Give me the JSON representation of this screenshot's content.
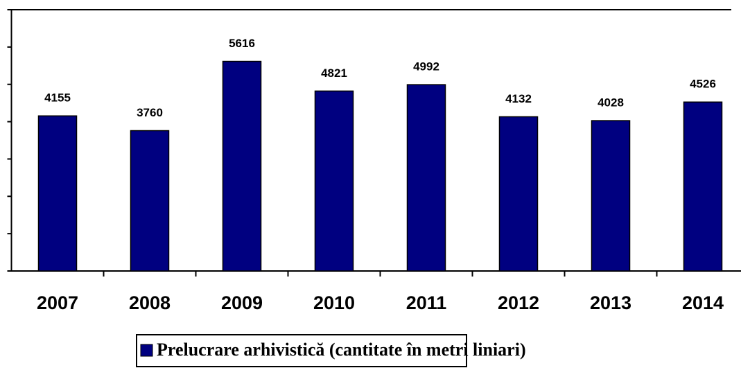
{
  "chart_data": {
    "type": "bar",
    "categories": [
      "2007",
      "2008",
      "2009",
      "2010",
      "2011",
      "2012",
      "2013",
      "2014"
    ],
    "series": [
      {
        "name": "Prelucrare arhivistică (cantitate în metri liniari)",
        "color": "#000080",
        "values": [
          4155,
          3760,
          5616,
          4821,
          4992,
          4132,
          4028,
          4526
        ]
      }
    ],
    "ylim": [
      0,
      7000
    ],
    "yticks": [
      0,
      1000,
      2000,
      3000,
      4000,
      5000,
      6000,
      7000
    ]
  }
}
